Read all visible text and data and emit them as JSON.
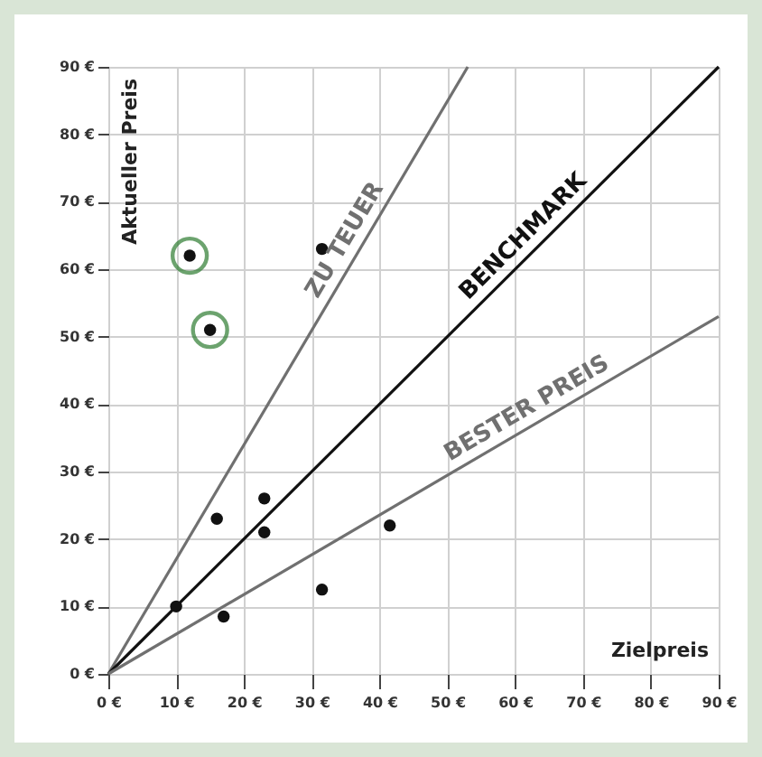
{
  "chart_data": {
    "type": "scatter",
    "xlabel": "Zielpreis",
    "ylabel": "Aktueller Preis",
    "xlim": [
      0,
      90
    ],
    "ylim": [
      0,
      90
    ],
    "xticks": [
      {
        "value": 0,
        "label": "0 €"
      },
      {
        "value": 10,
        "label": "10 €"
      },
      {
        "value": 20,
        "label": "20 €"
      },
      {
        "value": 30,
        "label": "30 €"
      },
      {
        "value": 40,
        "label": "40 €"
      },
      {
        "value": 50,
        "label": "50 €"
      },
      {
        "value": 60,
        "label": "60 €"
      },
      {
        "value": 70,
        "label": "70 €"
      },
      {
        "value": 80,
        "label": "80 €"
      },
      {
        "value": 90,
        "label": "90 €"
      }
    ],
    "yticks": [
      {
        "value": 0,
        "label": "0 €"
      },
      {
        "value": 10,
        "label": "10 €"
      },
      {
        "value": 20,
        "label": "20 €"
      },
      {
        "value": 30,
        "label": "30 €"
      },
      {
        "value": 40,
        "label": "40 €"
      },
      {
        "value": 50,
        "label": "50 €"
      },
      {
        "value": 60,
        "label": "60 €"
      },
      {
        "value": 70,
        "label": "70 €"
      },
      {
        "value": 80,
        "label": "80 €"
      },
      {
        "value": 90,
        "label": "90 €"
      }
    ],
    "grid": true,
    "marker": "circle",
    "series": [
      {
        "name": "ZU TEUER",
        "type": "line",
        "marker": "none",
        "color": "#707070",
        "x": [
          0,
          53
        ],
        "values": [
          0,
          90
        ]
      },
      {
        "name": "BENCHMARK",
        "type": "line",
        "marker": "none",
        "color": "#111111",
        "x": [
          0,
          90
        ],
        "values": [
          0,
          90
        ]
      },
      {
        "name": "BESTER PREIS",
        "type": "line",
        "marker": "none",
        "color": "#707070",
        "x": [
          0,
          90
        ],
        "values": [
          0,
          53
        ]
      },
      {
        "color": "#111111",
        "x": [
          12,
          15,
          31.5,
          16,
          23,
          23,
          41.5,
          10,
          17,
          31.5
        ],
        "values": [
          62,
          51,
          63,
          23,
          26,
          21,
          22,
          10,
          8.5,
          12.5
        ]
      },
      {
        "color": "#2e7d32",
        "x": [
          12,
          15
        ],
        "values": [
          62,
          51
        ]
      }
    ]
  }
}
